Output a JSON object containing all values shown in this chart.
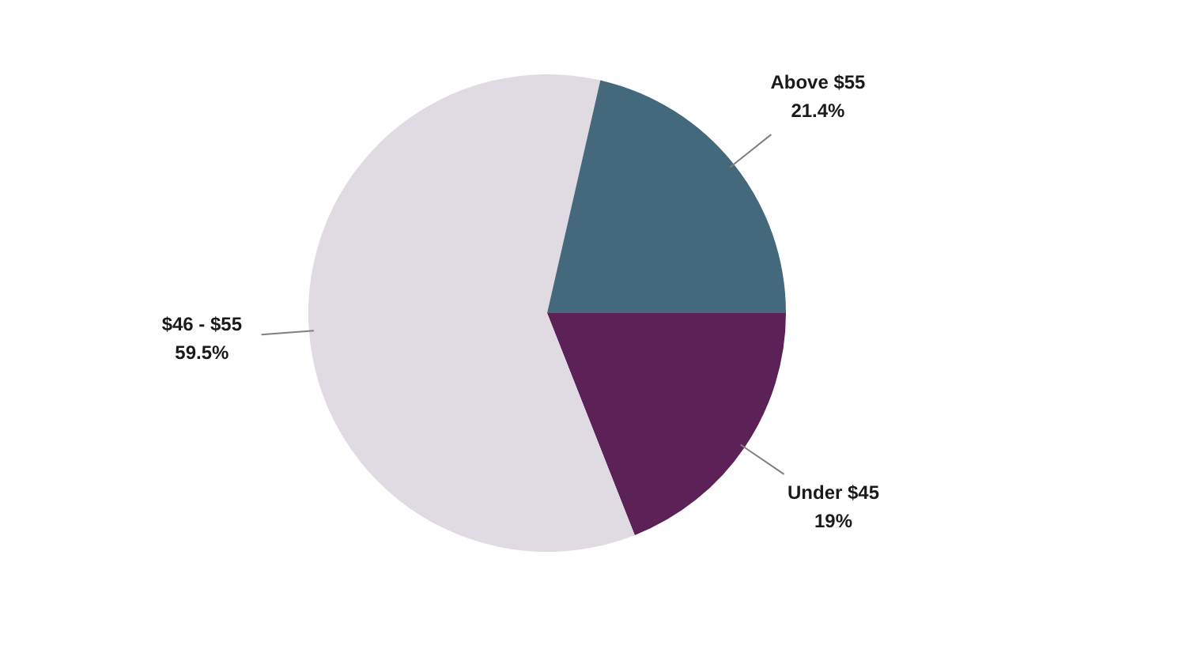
{
  "chart_data": {
    "type": "pie",
    "categories": [
      "Under $45",
      "$46 - $55",
      "Above $55"
    ],
    "values": [
      19,
      59.5,
      21.4
    ],
    "colors": [
      "#5c2157",
      "#e0dae2",
      "#44687c"
    ],
    "value_labels": [
      "19%",
      "59.5%",
      "21.4%"
    ],
    "legend": false
  }
}
